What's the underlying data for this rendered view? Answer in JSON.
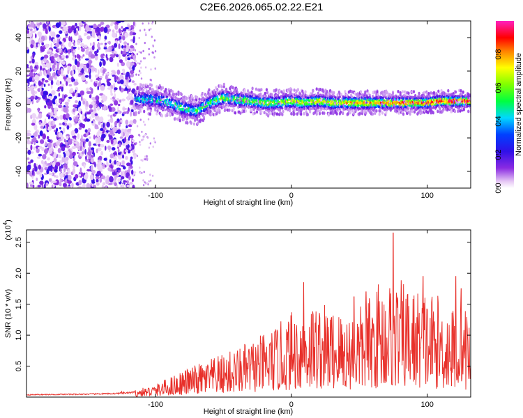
{
  "title": "C2E6.2026.065.02.22.E21",
  "chart_data": [
    {
      "type": "heatmap",
      "name": "spectrogram",
      "xlabel": "Height of straight line (km)",
      "ylabel": "Frequency (Hz)",
      "xlim": [
        -195,
        132
      ],
      "ylim": [
        -50,
        50
      ],
      "xticks": [
        -100,
        0,
        100
      ],
      "xtick_labels": [
        "-100",
        "0",
        "100"
      ],
      "yticks": [
        -40,
        -20,
        0,
        20,
        40
      ],
      "ytick_labels": [
        "-40",
        "-20",
        "0",
        "20",
        "40"
      ],
      "description_of_signal": {
        "noise_region_km": [
          -195,
          -115
        ],
        "signal_start_km": -115,
        "signal_center_hz": [
          [
            -112,
            3
          ],
          [
            -100,
            3
          ],
          [
            -90,
            1
          ],
          [
            -80,
            -2
          ],
          [
            -70,
            -4
          ],
          [
            -60,
            1
          ],
          [
            -50,
            4
          ],
          [
            -40,
            3
          ],
          [
            -30,
            2
          ],
          [
            -20,
            1
          ],
          [
            -10,
            1
          ],
          [
            0,
            2
          ],
          [
            10,
            1
          ],
          [
            20,
            2
          ],
          [
            30,
            1
          ],
          [
            40,
            1
          ],
          [
            50,
            1
          ],
          [
            60,
            1
          ],
          [
            70,
            1
          ],
          [
            80,
            1
          ],
          [
            90,
            1
          ],
          [
            100,
            1
          ],
          [
            110,
            2
          ],
          [
            120,
            2
          ],
          [
            130,
            2
          ]
        ]
      },
      "colorbar": {
        "label": "Normalized spectral amplitude",
        "range": [
          0,
          1
        ],
        "ticks": [
          0.0,
          0.2,
          0.4,
          0.6,
          0.8
        ],
        "tick_labels": [
          "0.0",
          "0.2",
          "0.4",
          "0.6",
          "0.8"
        ]
      }
    },
    {
      "type": "line",
      "name": "snr",
      "xlabel": "Height of straight line (km)",
      "ylabel": "SNR (10 * v/v)",
      "multiplier_label": "(x10",
      "multiplier_exp": "4",
      "multiplier_close": ")",
      "xlim": [
        -195,
        132
      ],
      "ylim": [
        0,
        2.7
      ],
      "xticks": [
        -100,
        0,
        100
      ],
      "xtick_labels": [
        "-100",
        "0",
        "100"
      ],
      "yticks": [
        0.5,
        1.0,
        1.5,
        2.0,
        2.5
      ],
      "ytick_labels": [
        "0.5",
        "1.0",
        "1.5",
        "2.0",
        "2.5"
      ],
      "color": "#e8302a",
      "envelope": {
        "x": [
          -195,
          -150,
          -130,
          -115,
          -100,
          -90,
          -80,
          -70,
          -60,
          -50,
          -40,
          -30,
          -20,
          -10,
          0,
          10,
          20,
          30,
          40,
          50,
          60,
          70,
          80,
          90,
          100,
          110,
          120,
          130
        ],
        "y": [
          0.04,
          0.05,
          0.06,
          0.08,
          0.14,
          0.22,
          0.3,
          0.36,
          0.42,
          0.48,
          0.55,
          0.62,
          0.7,
          0.8,
          0.95,
          1.05,
          1.05,
          1.0,
          0.95,
          1.0,
          1.15,
          1.3,
          1.3,
          1.2,
          1.2,
          1.1,
          1.0,
          1.0
        ]
      },
      "peaks": [
        {
          "x": -125,
          "y": 0.09
        },
        {
          "x": -75,
          "y": 0.38
        },
        {
          "x": 9,
          "y": 1.85
        },
        {
          "x": 46,
          "y": 1.62
        },
        {
          "x": 55,
          "y": 1.7
        },
        {
          "x": 64,
          "y": 1.82
        },
        {
          "x": 75,
          "y": 2.65
        },
        {
          "x": 97,
          "y": 1.95
        },
        {
          "x": 121,
          "y": 1.95
        },
        {
          "x": 125,
          "y": 1.75
        }
      ]
    }
  ]
}
